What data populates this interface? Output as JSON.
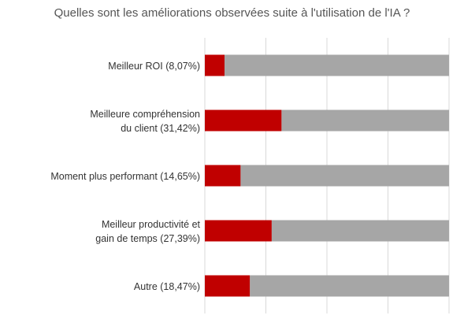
{
  "chart_data": {
    "type": "bar",
    "orientation": "horizontal",
    "stacked": true,
    "title": "Quelles sont les améliorations observées suite à l'utilisation de l'IA ?",
    "categories": [
      [
        "Meilleur ROI (8,07%)"
      ],
      [
        "Meilleure compréhension",
        "du client (31,42%)"
      ],
      [
        "Moment plus performant (14,65%)"
      ],
      [
        "Meilleur productivité et",
        "gain de temps (27,39%)"
      ],
      [
        "Autre (18,47%)"
      ]
    ],
    "series": [
      {
        "values": [
          8.07,
          31.42,
          14.65,
          27.39,
          18.47
        ],
        "color": "#C00000"
      },
      {
        "values": [
          91.93,
          68.58,
          85.35,
          72.61,
          81.53
        ],
        "color": "#A6A6A6"
      }
    ],
    "xlim": [
      0,
      100
    ],
    "grid": "vertical",
    "legend": "none"
  }
}
